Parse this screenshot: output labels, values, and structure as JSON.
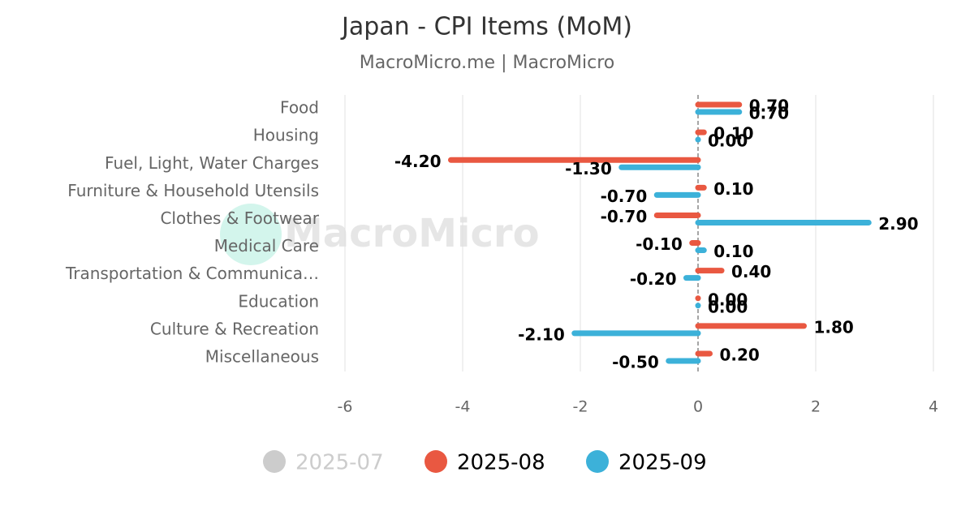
{
  "chart_data": {
    "type": "hbar",
    "title": "Japan - CPI Items (MoM)",
    "subtitle": "MacroMicro.me | MacroMicro",
    "watermark": "MacroMicro",
    "categories": [
      "Food",
      "Housing",
      "Fuel, Light, Water Charges",
      "Furniture & Household Utensils",
      "Clothes & Footwear",
      "Medical Care",
      "Transportation & Communica…",
      "Education",
      "Culture & Recreation",
      "Miscellaneous"
    ],
    "series": [
      {
        "name": "2025-07",
        "color": "#cccccc",
        "hidden": true,
        "values": [
          null,
          null,
          null,
          null,
          null,
          null,
          null,
          null,
          null,
          null
        ]
      },
      {
        "name": "2025-08",
        "color": "#e95841",
        "values": [
          0.7,
          0.1,
          -4.2,
          0.1,
          -0.7,
          -0.1,
          0.4,
          0,
          1.8,
          0.2
        ],
        "value_labels": [
          "0.70",
          "0.10",
          "-4.20",
          "0.10",
          "-0.70",
          "-0.10",
          "0.40",
          "0.00",
          "1.80",
          "0.20"
        ]
      },
      {
        "name": "2025-09",
        "color": "#3cb1d9",
        "values": [
          0.7,
          0,
          -1.3,
          -0.7,
          2.9,
          0.1,
          -0.2,
          0,
          -2.1,
          -0.5
        ],
        "value_labels": [
          "0.70",
          "0.00",
          "-1.30",
          "-0.70",
          "2.90",
          "0.10",
          "-0.20",
          "0.00",
          "-2.10",
          "-0.50"
        ]
      }
    ],
    "xlim": [
      -6,
      4
    ],
    "xticks": [
      -6,
      -4,
      -2,
      0,
      2,
      4
    ],
    "grid": true,
    "legend": "bottom"
  }
}
